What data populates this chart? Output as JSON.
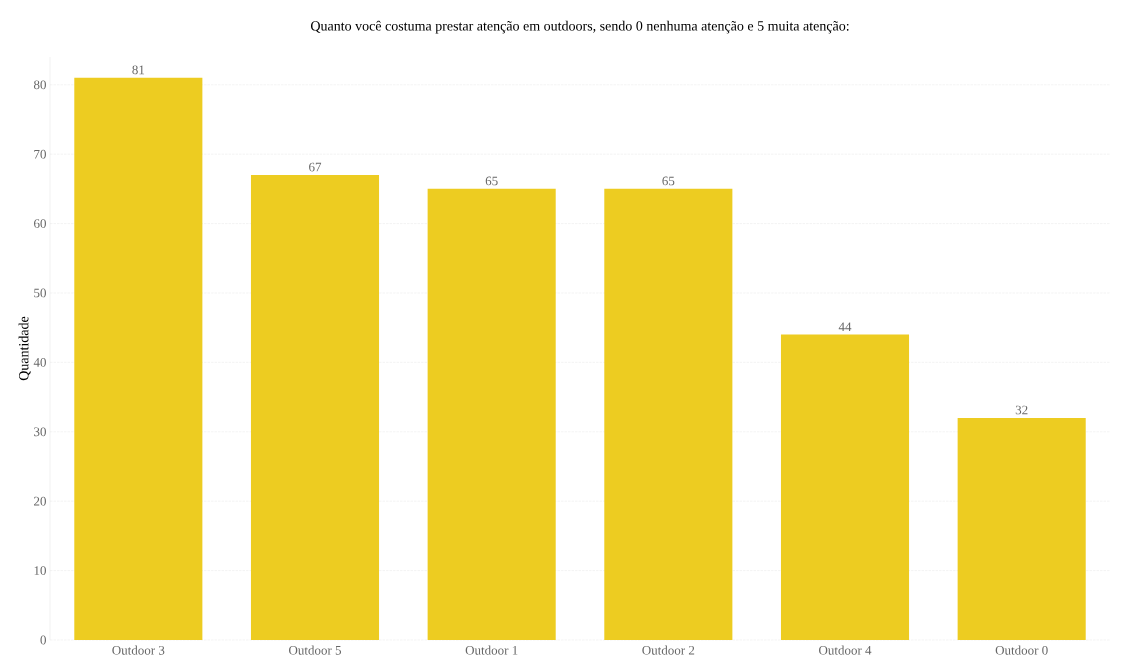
{
  "chart_data": {
    "type": "bar",
    "title": "Quanto você costuma prestar atenção em outdoors, sendo 0 nenhuma atenção e 5 muita atenção:",
    "ylabel": "Quantidade",
    "categories": [
      "Outdoor 3",
      "Outdoor 5",
      "Outdoor 1",
      "Outdoor 2",
      "Outdoor 4",
      "Outdoor 0"
    ],
    "values": [
      81,
      67,
      65,
      65,
      44,
      32
    ],
    "color": "#edcc21",
    "ylim": [
      0,
      84
    ],
    "yticks": [
      0,
      10,
      20,
      30,
      40,
      50,
      60,
      70,
      80
    ],
    "grid": "y",
    "data_labels": true
  }
}
